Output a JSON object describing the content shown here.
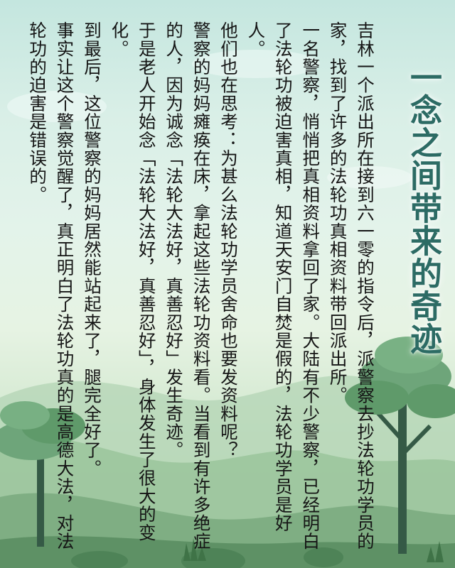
{
  "colors": {
    "title": "#2c6b64",
    "text": "#151515",
    "sky_top": "#c4e6df",
    "hill_near": "#7fae83",
    "tree_foliage": "#5f9a6a",
    "trunk": "#355a46"
  },
  "poster": {
    "title": "一念之间带来的奇迹",
    "paragraphs": [
      "吉林一个派出所在接到六一零的指令后，派警察去抄法轮功学员的家，找到了许多的法轮功真相资料带回派出所。",
      "一名警察，悄悄把真相资料拿回了家。大陆有不少警察，已经明白了法轮功被迫害真相，知道天安门自焚是假的，法轮功学员是好人。",
      "他们也在思考：为甚么法轮功学员舍命也要发资料呢？",
      "警察的妈妈瘫痪在床，拿起这些法轮功资料看。当看到有许多绝症的人，因为诚念「法轮大法好，真善忍好」发生奇迹。",
      "于是老人开始念「法轮大法好，真善忍好」，身体发生了很大的变化。",
      "到最后，这位警察的妈妈居然能站起来了，腿完全好了。",
      "事实让这个警察觉醒了，真正明白了法轮功真的是高德大法，对法轮功的迫害是错误的。"
    ]
  }
}
